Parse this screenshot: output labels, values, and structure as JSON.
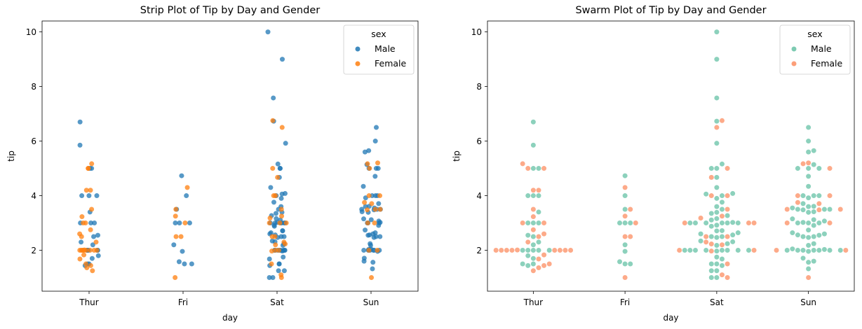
{
  "chart_data": [
    {
      "type": "strip",
      "title": "Strip Plot of Tip by Day and Gender",
      "xlabel": "day",
      "ylabel": "tip",
      "categories": [
        "Thur",
        "Fri",
        "Sat",
        "Sun"
      ],
      "ylim": [
        0.5,
        10.4
      ],
      "yticks": [
        2,
        4,
        6,
        8,
        10
      ],
      "grid": false,
      "legend": {
        "title": "sex",
        "position": "top-right"
      },
      "series": [
        {
          "name": "Male",
          "color": "#1f77b4",
          "values": {
            "Thur": [
              6.7,
              5.85,
              5.0,
              5.0,
              4.0,
              4.0,
              4.0,
              3.4,
              3.0,
              3.0,
              3.0,
              2.5,
              2.55,
              2.3,
              2.2,
              2.0,
              2.0,
              2.0,
              2.0,
              2.0,
              1.8,
              1.7,
              1.5,
              1.5,
              1.44
            ],
            "Fri": [
              4.73,
              4.0,
              3.5,
              3.0,
              3.0,
              3.0,
              2.2,
              1.96,
              1.58,
              1.5,
              1.5
            ],
            "Sat": [
              10.0,
              9.0,
              7.58,
              6.73,
              5.92,
              5.16,
              5.0,
              5.0,
              4.67,
              4.3,
              4.08,
              4.06,
              4.0,
              3.9,
              3.76,
              3.6,
              3.5,
              3.39,
              3.35,
              3.27,
              3.16,
              3.11,
              3.02,
              3.0,
              3.0,
              3.0,
              3.0,
              3.0,
              3.0,
              2.92,
              2.88,
              2.72,
              2.71,
              2.64,
              2.6,
              2.56,
              2.5,
              2.5,
              2.47,
              2.34,
              2.31,
              2.24,
              2.18,
              2.0,
              2.0,
              2.0,
              2.0,
              2.0,
              2.0,
              2.0,
              2.0,
              1.97,
              1.75,
              1.68,
              1.5,
              1.5,
              1.44,
              1.25,
              1.25,
              1.0,
              1.0
            ],
            "Sun": [
              6.5,
              6.0,
              5.65,
              5.6,
              5.14,
              5.0,
              5.0,
              5.0,
              4.71,
              4.34,
              4.0,
              4.0,
              4.0,
              3.92,
              3.71,
              3.61,
              3.6,
              3.55,
              3.5,
              3.5,
              3.5,
              3.48,
              3.41,
              3.39,
              3.15,
              3.12,
              3.07,
              3.02,
              3.0,
              3.0,
              3.0,
              2.91,
              2.74,
              2.64,
              2.6,
              2.56,
              2.55,
              2.5,
              2.5,
              2.47,
              2.24,
              2.18,
              2.05,
              2.03,
              2.0,
              2.0,
              2.0,
              2.0,
              2.0,
              2.0,
              2.0,
              1.96,
              1.71,
              1.6,
              1.56,
              1.32
            ]
          }
        },
        {
          "name": "Female",
          "color": "#ff7f0e",
          "values": {
            "Thur": [
              5.17,
              5.0,
              5.0,
              4.2,
              4.2,
              3.5,
              3.23,
              3.0,
              3.0,
              2.75,
              2.6,
              2.5,
              2.3,
              2.01,
              2.0,
              2.0,
              2.0,
              2.0,
              2.0,
              2.0,
              2.0,
              2.0,
              1.83,
              1.68,
              1.5,
              1.44,
              1.36,
              1.25
            ],
            "Fri": [
              4.3,
              3.5,
              3.25,
              3.0,
              2.5,
              2.5,
              1.0
            ],
            "Sat": [
              6.75,
              6.5,
              5.0,
              4.67,
              4.0,
              4.0,
              3.5,
              3.25,
              3.18,
              3.0,
              3.0,
              3.0,
              2.5,
              2.5,
              2.3,
              2.23,
              2.2,
              2.0,
              2.0,
              1.97,
              1.5,
              1.1,
              1.0
            ],
            "Sun": [
              5.2,
              5.17,
              5.0,
              4.0,
              4.0,
              3.75,
              3.71,
              3.5,
              3.5,
              3.48,
              3.0,
              3.0,
              2.0,
              2.0,
              1.0
            ]
          }
        }
      ]
    },
    {
      "type": "swarm",
      "title": "Swarm Plot of Tip by Day and Gender",
      "xlabel": "day",
      "ylabel": "tip",
      "categories": [
        "Thur",
        "Fri",
        "Sat",
        "Sun"
      ],
      "ylim": [
        0.5,
        10.4
      ],
      "yticks": [
        2,
        4,
        6,
        8,
        10
      ],
      "grid": false,
      "legend": {
        "title": "sex",
        "position": "top-right"
      },
      "series": [
        {
          "name": "Male",
          "color": "#66c2a5",
          "values": {
            "Thur": [
              6.7,
              5.85,
              5.0,
              5.0,
              4.0,
              4.0,
              4.0,
              3.4,
              3.0,
              3.0,
              3.0,
              2.5,
              2.55,
              2.3,
              2.2,
              2.0,
              2.0,
              2.0,
              2.0,
              2.0,
              1.8,
              1.7,
              1.5,
              1.5,
              1.44
            ],
            "Fri": [
              4.73,
              4.0,
              3.5,
              3.0,
              3.0,
              3.0,
              2.2,
              1.96,
              1.58,
              1.5,
              1.5
            ],
            "Sat": [
              10.0,
              9.0,
              7.58,
              6.73,
              5.92,
              5.16,
              5.0,
              5.0,
              4.67,
              4.3,
              4.08,
              4.06,
              4.0,
              3.9,
              3.76,
              3.6,
              3.5,
              3.39,
              3.35,
              3.27,
              3.16,
              3.11,
              3.02,
              3.0,
              3.0,
              3.0,
              3.0,
              3.0,
              3.0,
              2.92,
              2.88,
              2.72,
              2.71,
              2.64,
              2.6,
              2.56,
              2.5,
              2.5,
              2.47,
              2.34,
              2.31,
              2.24,
              2.18,
              2.0,
              2.0,
              2.0,
              2.0,
              2.0,
              2.0,
              2.0,
              2.0,
              1.97,
              1.75,
              1.68,
              1.5,
              1.5,
              1.44,
              1.25,
              1.25,
              1.0,
              1.0
            ],
            "Sun": [
              6.5,
              6.0,
              5.65,
              5.6,
              5.14,
              5.0,
              5.0,
              5.0,
              4.71,
              4.34,
              4.0,
              4.0,
              4.0,
              3.92,
              3.71,
              3.61,
              3.6,
              3.55,
              3.5,
              3.5,
              3.5,
              3.48,
              3.41,
              3.39,
              3.15,
              3.12,
              3.07,
              3.02,
              3.0,
              3.0,
              3.0,
              2.91,
              2.74,
              2.64,
              2.6,
              2.56,
              2.55,
              2.5,
              2.5,
              2.47,
              2.24,
              2.18,
              2.05,
              2.03,
              2.0,
              2.0,
              2.0,
              2.0,
              2.0,
              2.0,
              2.0,
              1.96,
              1.71,
              1.6,
              1.56,
              1.32
            ]
          }
        },
        {
          "name": "Female",
          "color": "#fc8d62",
          "values": {
            "Thur": [
              5.17,
              5.0,
              5.0,
              4.2,
              4.2,
              3.5,
              3.23,
              3.0,
              3.0,
              2.75,
              2.6,
              2.5,
              2.3,
              2.01,
              2.0,
              2.0,
              2.0,
              2.0,
              2.0,
              2.0,
              2.0,
              2.0,
              1.83,
              1.68,
              1.5,
              1.44,
              1.36,
              1.25
            ],
            "Fri": [
              4.3,
              3.5,
              3.25,
              3.0,
              2.5,
              2.5,
              1.0
            ],
            "Sat": [
              6.75,
              6.5,
              5.0,
              4.67,
              4.0,
              4.0,
              3.5,
              3.25,
              3.18,
              3.0,
              3.0,
              3.0,
              2.5,
              2.5,
              2.3,
              2.23,
              2.2,
              2.0,
              2.0,
              1.97,
              1.5,
              1.1,
              1.0
            ],
            "Sun": [
              5.2,
              5.17,
              5.0,
              4.0,
              4.0,
              3.75,
              3.71,
              3.5,
              3.5,
              3.48,
              3.0,
              3.0,
              2.0,
              2.0,
              1.0
            ]
          }
        }
      ]
    }
  ]
}
